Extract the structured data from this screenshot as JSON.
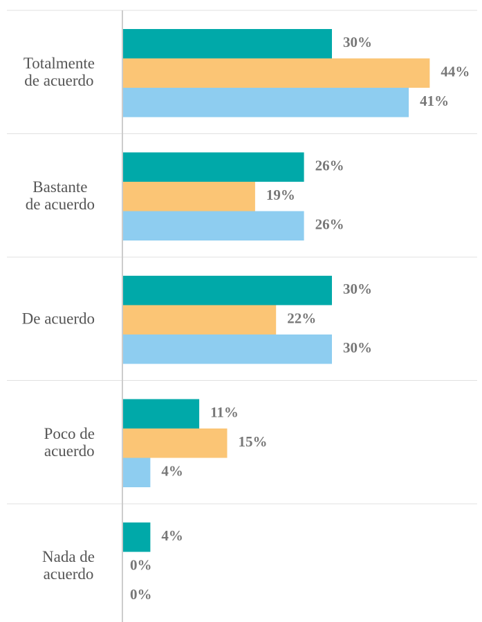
{
  "chart_data": {
    "type": "bar",
    "orientation": "horizontal",
    "categories": [
      "Totalmente\nde acuerdo",
      "Bastante\nde acuerdo",
      "De acuerdo",
      "Poco de\nacuerdo",
      "Nada de\nacuerdo"
    ],
    "series": [
      {
        "color": "#00a9a9",
        "values": [
          30,
          26,
          30,
          11,
          4
        ],
        "value_labels": [
          "30%",
          "26%",
          "30%",
          "11%",
          "4%"
        ]
      },
      {
        "color": "#fbc575",
        "values": [
          44,
          19,
          22,
          15,
          0
        ],
        "value_labels": [
          "44%",
          "19%",
          "22%",
          "15%",
          "0%"
        ]
      },
      {
        "color": "#8ecdf0",
        "values": [
          41,
          26,
          30,
          4,
          0
        ],
        "value_labels": [
          "41%",
          "26%",
          "30%",
          "4%",
          "0%"
        ]
      }
    ]
  }
}
